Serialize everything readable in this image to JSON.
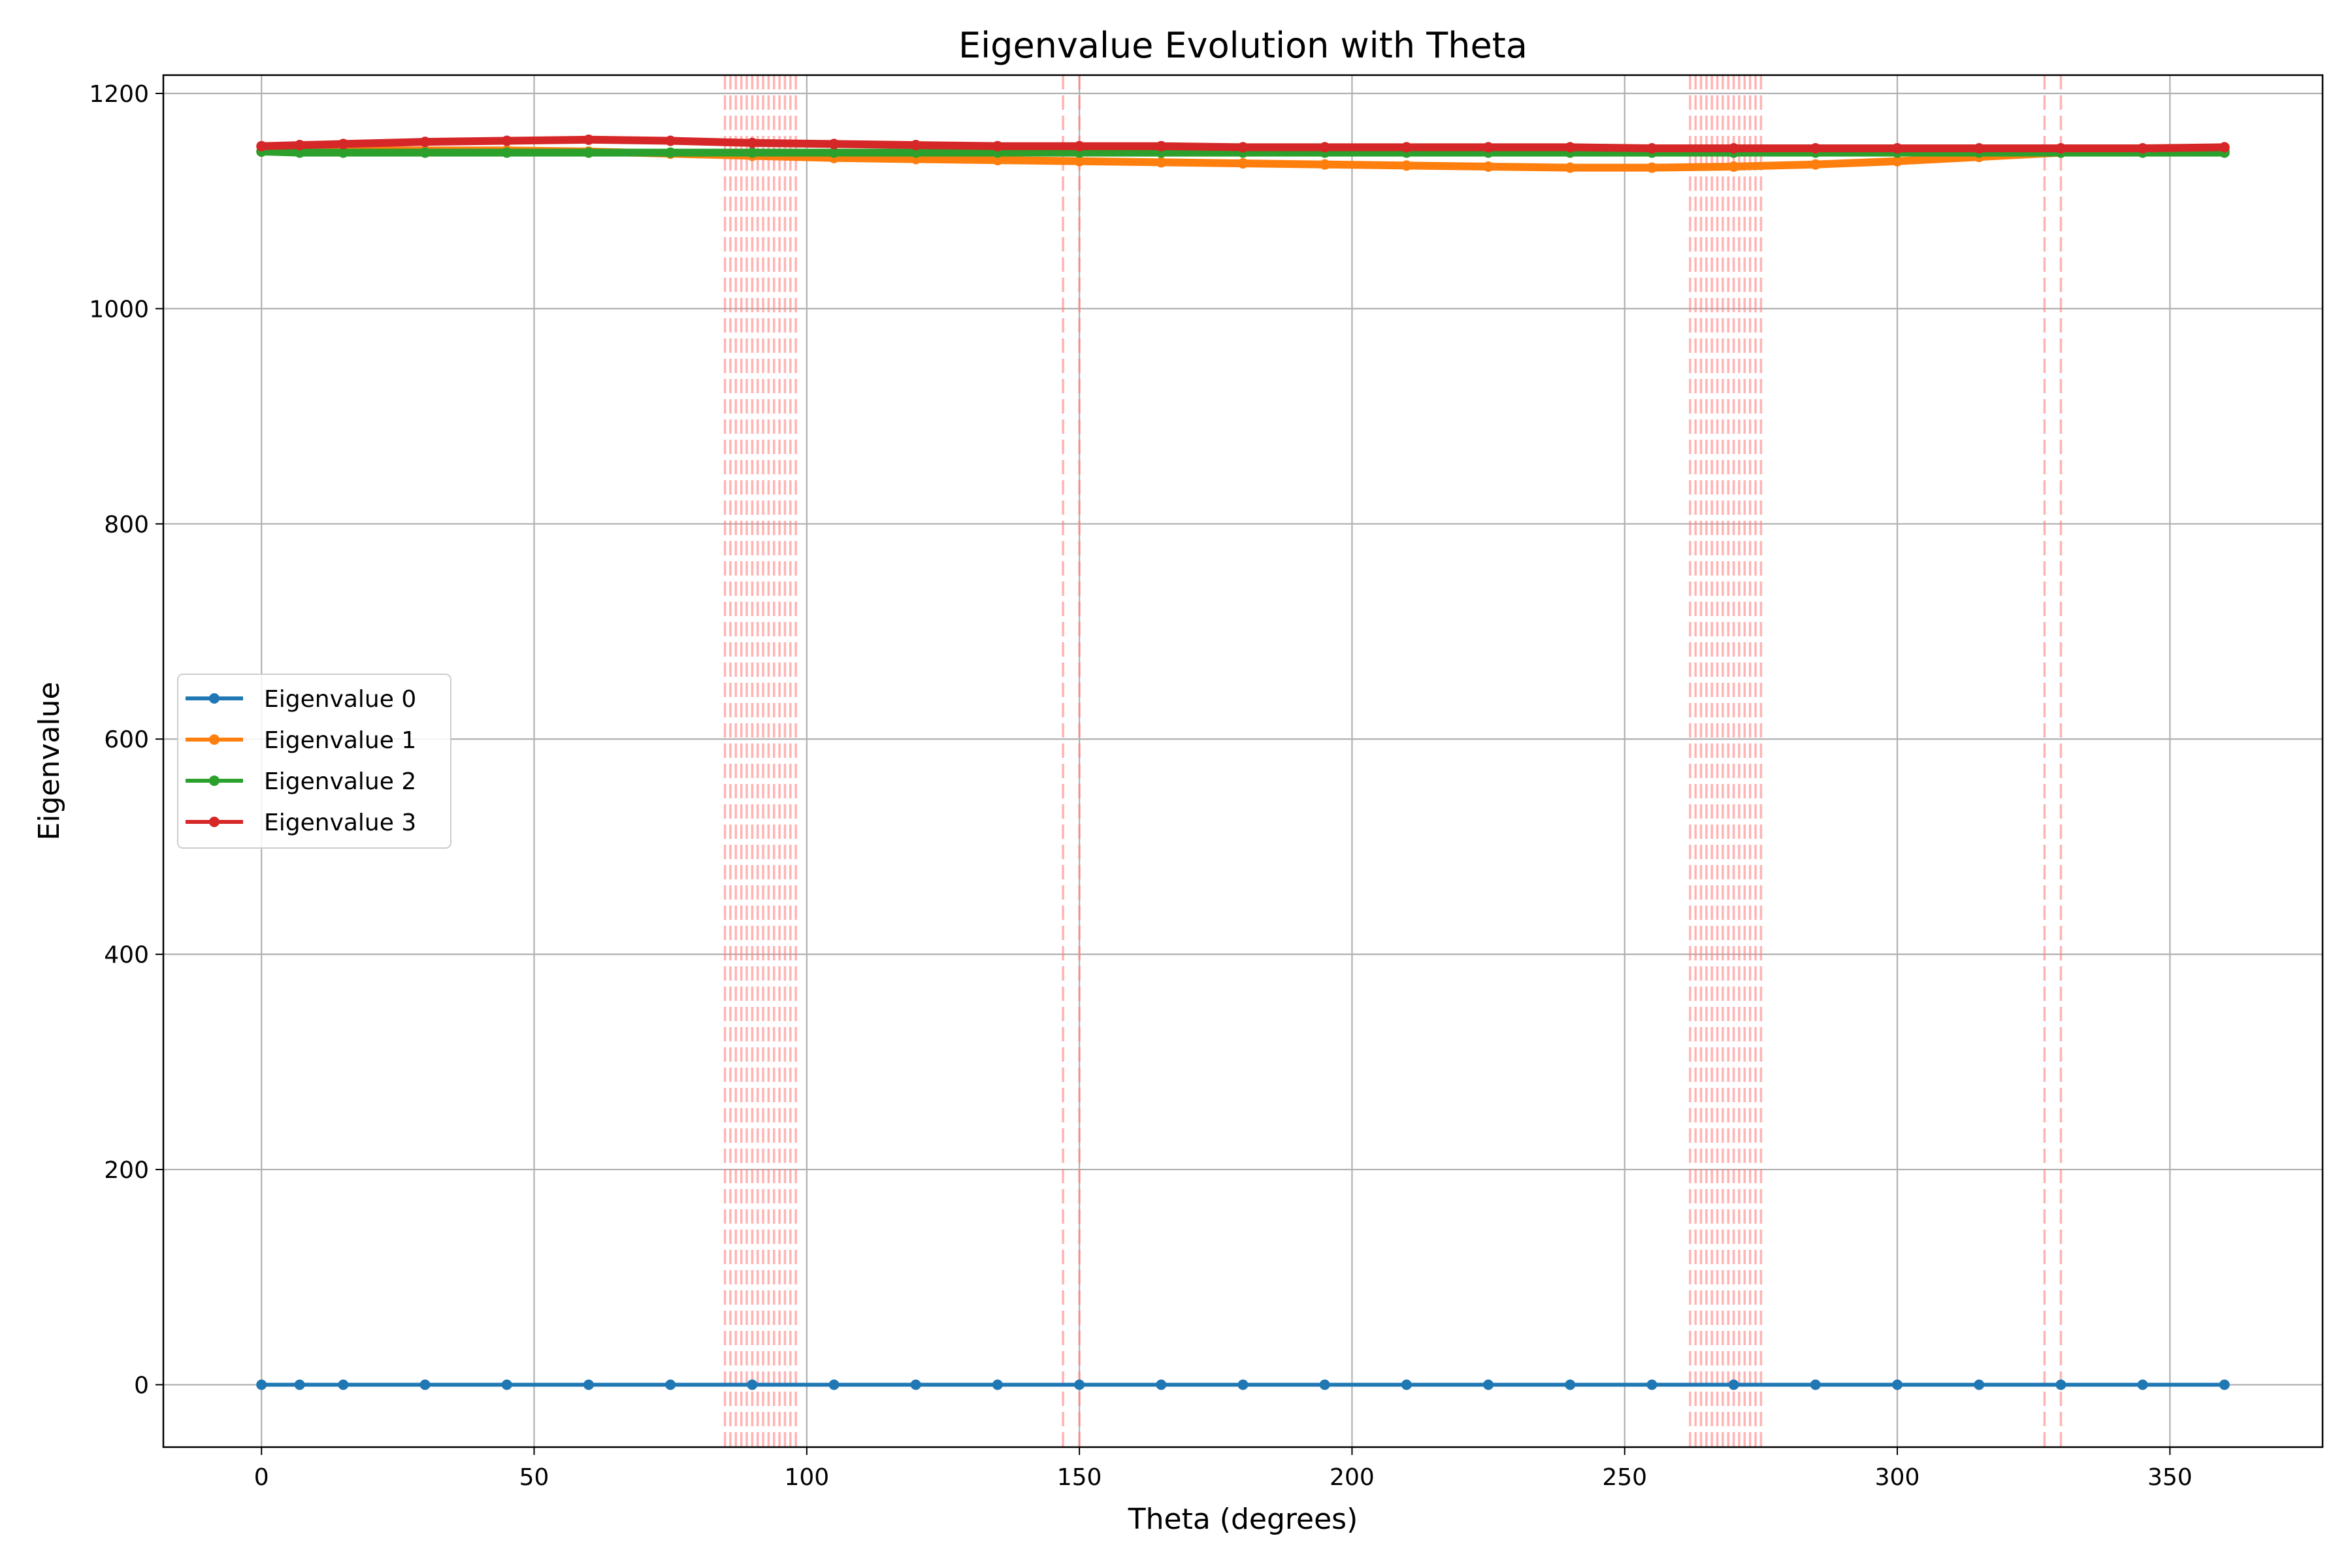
{
  "chart_data": {
    "type": "line",
    "title": "Eigenvalue Evolution with Theta",
    "xlabel": "Theta (degrees)",
    "ylabel": "Eigenvalue",
    "xlim": [
      -18,
      378
    ],
    "ylim": [
      -58,
      1217
    ],
    "xticks": [
      0,
      50,
      100,
      150,
      200,
      250,
      300,
      350
    ],
    "yticks": [
      0,
      200,
      400,
      600,
      800,
      1000,
      1200
    ],
    "grid": true,
    "legend_position": "center-left",
    "x": [
      0,
      7,
      15,
      30,
      45,
      60,
      75,
      90,
      105,
      120,
      135,
      150,
      165,
      180,
      195,
      210,
      225,
      240,
      255,
      270,
      285,
      300,
      315,
      330,
      345,
      360
    ],
    "series": [
      {
        "name": "Eigenvalue 0",
        "color": "#1f77b4",
        "values": [
          0,
          0,
          0,
          0,
          0,
          0,
          0,
          0,
          0,
          0,
          0,
          0,
          0,
          0,
          0,
          0,
          0,
          0,
          0,
          0,
          0,
          0,
          0,
          0,
          0,
          0
        ]
      },
      {
        "name": "Eigenvalue 1",
        "color": "#ff7f0e",
        "values": [
          1146,
          1146,
          1147,
          1147,
          1147,
          1146,
          1144,
          1142,
          1140,
          1139,
          1138,
          1137,
          1136,
          1135,
          1134,
          1133,
          1132,
          1131,
          1131,
          1132,
          1134,
          1137,
          1141,
          1145,
          1147,
          1147
        ]
      },
      {
        "name": "Eigenvalue 2",
        "color": "#2ca02c",
        "values": [
          1146,
          1145,
          1145,
          1145,
          1145,
          1145,
          1145,
          1145,
          1145,
          1145,
          1145,
          1145,
          1145,
          1145,
          1145,
          1145,
          1145,
          1145,
          1145,
          1145,
          1145,
          1145,
          1145,
          1145,
          1145,
          1145
        ]
      },
      {
        "name": "Eigenvalue 3",
        "color": "#d62728",
        "values": [
          1151,
          1152,
          1153,
          1155,
          1156,
          1157,
          1156,
          1154,
          1153,
          1152,
          1151,
          1151,
          1151,
          1150,
          1150,
          1150,
          1150,
          1150,
          1149,
          1149,
          1149,
          1149,
          1149,
          1149,
          1149,
          1150
        ]
      }
    ],
    "vertical_markers": {
      "color": "#ff8080",
      "style": "dashed",
      "x": [
        85,
        86,
        87,
        88,
        89,
        90,
        91,
        92,
        93,
        94,
        95,
        96,
        97,
        98,
        147,
        150,
        262,
        263,
        264,
        265,
        266,
        267,
        268,
        269,
        270,
        271,
        272,
        273,
        274,
        275,
        327,
        330
      ]
    }
  }
}
